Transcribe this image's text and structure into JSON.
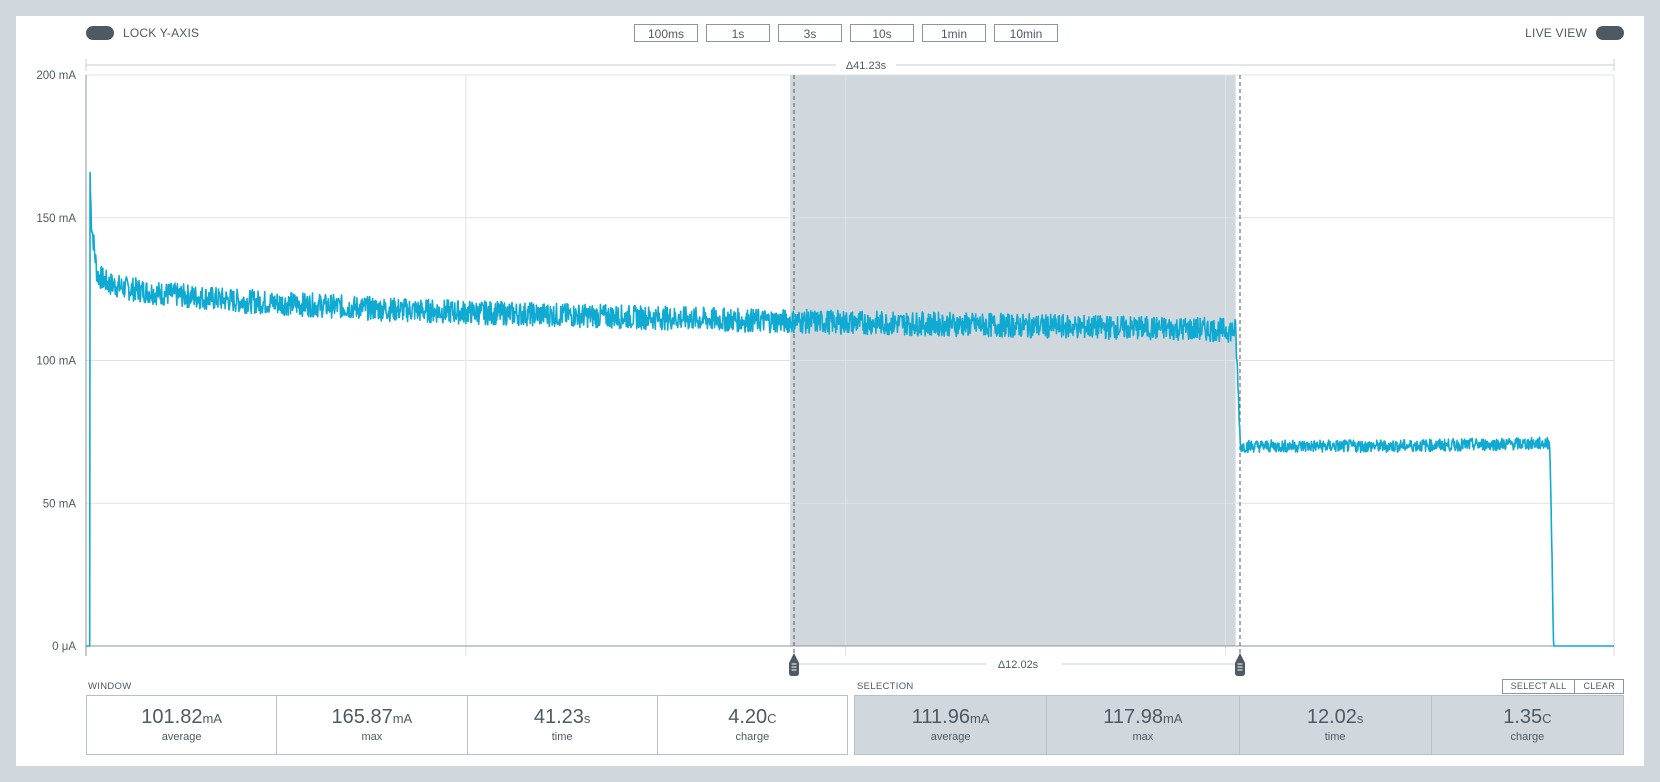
{
  "toolbar": {
    "lock_y_axis_label": "LOCK Y-AXIS",
    "live_view_label": "LIVE VIEW",
    "window_buttons": [
      "100ms",
      "1s",
      "3s",
      "10s",
      "1min",
      "10min"
    ]
  },
  "chart_data": {
    "type": "line",
    "ylabel_ticks": [
      "0 μA",
      "50 mA",
      "100 mA",
      "150 mA",
      "200 mA"
    ],
    "ylim": [
      0,
      200
    ],
    "y_unit": "mA",
    "x_range_seconds": [
      0,
      41.23
    ],
    "window_delta_label": "Δ41.23s",
    "selection_delta_label": "Δ12.02s",
    "selection_seconds": [
      19.0,
      31.02
    ],
    "series": [
      {
        "x": [
          0,
          0.05,
          0.1,
          0.15,
          0.3,
          0.6,
          1.0,
          2.0,
          4.0,
          6.0,
          8.0,
          10.0,
          14.0,
          18.0,
          22.0,
          26.0,
          30.0,
          31.02,
          31.15,
          35.0,
          39.5,
          39.6,
          41.23
        ],
        "y": [
          0,
          0,
          165.87,
          148,
          130,
          127,
          125.5,
          123.5,
          121,
          119.5,
          118,
          117,
          115.5,
          114,
          113,
          112,
          111,
          110.5,
          70,
          70,
          71,
          0,
          0
        ]
      }
    ]
  },
  "window_stats": {
    "label": "WINDOW",
    "items": [
      {
        "value": "101.82",
        "unit": "mA",
        "caption": "average"
      },
      {
        "value": "165.87",
        "unit": "mA",
        "caption": "max"
      },
      {
        "value": "41.23",
        "unit": "s",
        "caption": "time"
      },
      {
        "value": "4.20",
        "unit": "C",
        "caption": "charge"
      }
    ]
  },
  "selection_stats": {
    "label": "SELECTION",
    "select_all_label": "SELECT ALL",
    "clear_label": "CLEAR",
    "items": [
      {
        "value": "111.96",
        "unit": "mA",
        "caption": "average"
      },
      {
        "value": "117.98",
        "unit": "mA",
        "caption": "max"
      },
      {
        "value": "12.02",
        "unit": "s",
        "caption": "time"
      },
      {
        "value": "1.35",
        "unit": "C",
        "caption": "charge"
      }
    ]
  },
  "colors": {
    "trace": "#0fa9d1",
    "selection_fill": "#d0d8dd",
    "text": "#4e5a63",
    "background": "#d0d8dd"
  }
}
